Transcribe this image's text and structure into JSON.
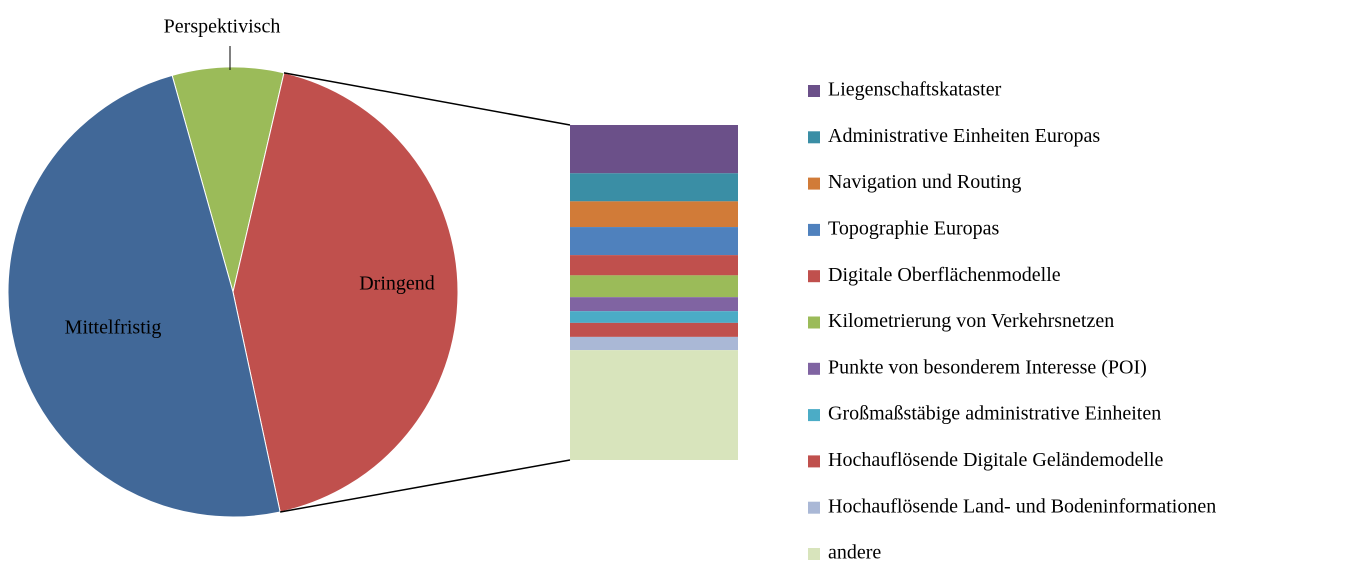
{
  "chart_data": {
    "type": "bar-of-pie",
    "pie": {
      "categories": [
        "Perspektivisch",
        "Dringend",
        "Mittelfristig"
      ],
      "values": [
        8,
        43,
        49
      ],
      "colors": [
        "#9bbb59",
        "#c0504d",
        "#416898"
      ]
    },
    "bar": {
      "categories": [
        "Liegenschaftskataster",
        "Administrative Einheiten Europas",
        "Navigation und Routing",
        "Topographie Europas",
        "Digitale Oberflächenmodelle",
        "Kilometrierung von Verkehrsnetzen",
        "Punkte von besonderem Interesse (POI)",
        "Großmaßstäbige administrative Einheiten",
        "Hochauflösende Digitale Geländemodelle",
        "Hochauflösende Land- und Bodeninformationen",
        "andere"
      ],
      "values": [
        6.2,
        3.6,
        3.3,
        3.6,
        2.6,
        2.8,
        1.8,
        1.5,
        1.8,
        1.7,
        14.1
      ],
      "colors": [
        "#6b5089",
        "#3a8ea5",
        "#d17b38",
        "#4f81bd",
        "#c0504d",
        "#9bbb59",
        "#8064a2",
        "#4bacc6",
        "#c0504d",
        "#aab8d6",
        "#d8e4bc"
      ]
    },
    "legend": "right"
  }
}
